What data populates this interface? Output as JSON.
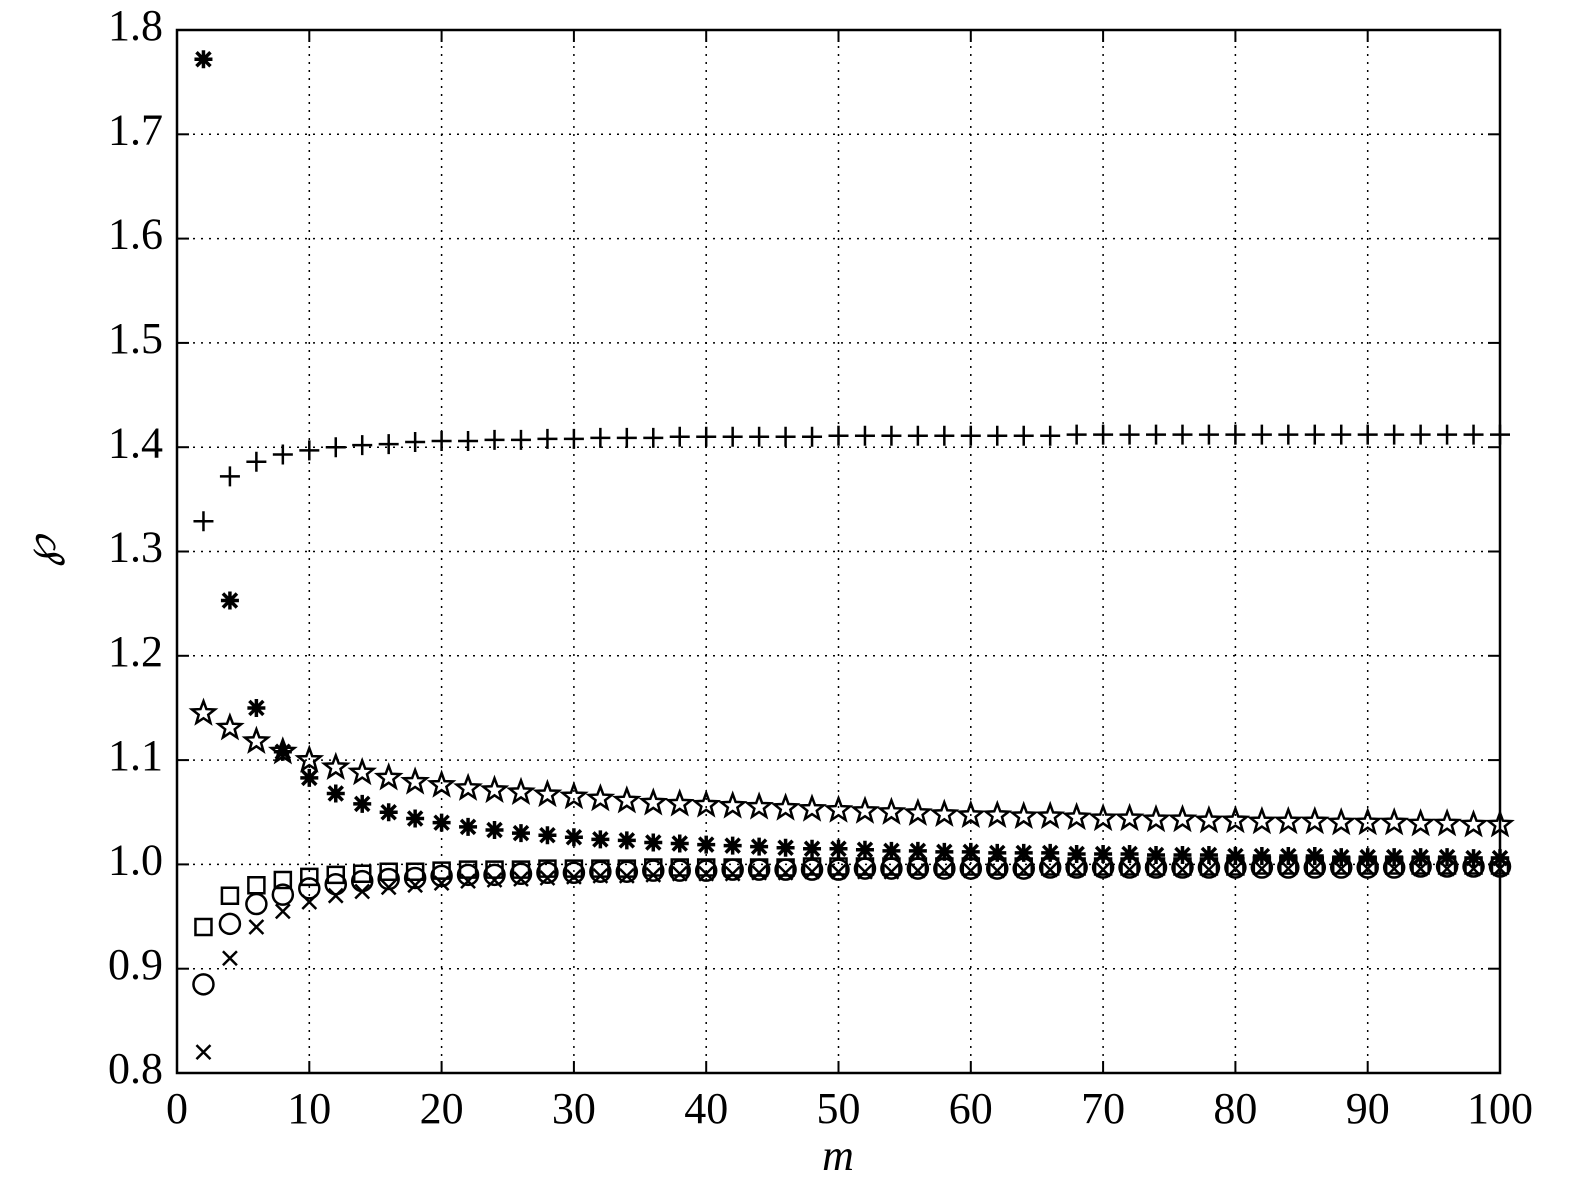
{
  "chart_data": {
    "type": "scatter",
    "xlabel": "m",
    "ylabel": "℘",
    "x": [
      2,
      4,
      6,
      8,
      10,
      12,
      14,
      16,
      18,
      20,
      22,
      24,
      26,
      28,
      30,
      32,
      34,
      36,
      38,
      40,
      42,
      44,
      46,
      48,
      50,
      52,
      54,
      56,
      58,
      60,
      62,
      64,
      66,
      68,
      70,
      72,
      74,
      76,
      78,
      80,
      82,
      84,
      86,
      88,
      90,
      92,
      94,
      96,
      98,
      100
    ],
    "series": [
      {
        "marker": "plus",
        "color": "#000000",
        "values": [
          1.329,
          1.372,
          1.386,
          1.393,
          1.397,
          1.4,
          1.402,
          1.403,
          1.405,
          1.406,
          1.406,
          1.407,
          1.407,
          1.408,
          1.408,
          1.409,
          1.409,
          1.409,
          1.41,
          1.41,
          1.41,
          1.41,
          1.41,
          1.41,
          1.411,
          1.411,
          1.411,
          1.411,
          1.411,
          1.411,
          1.411,
          1.411,
          1.411,
          1.412,
          1.412,
          1.412,
          1.412,
          1.412,
          1.412,
          1.412,
          1.412,
          1.412,
          1.412,
          1.412,
          1.412,
          1.412,
          1.412,
          1.412,
          1.412,
          1.412
        ]
      },
      {
        "marker": "asterisk",
        "color": "#000000",
        "values": [
          1.772,
          1.253,
          1.15,
          1.108,
          1.083,
          1.068,
          1.058,
          1.05,
          1.044,
          1.04,
          1.036,
          1.033,
          1.03,
          1.028,
          1.026,
          1.024,
          1.023,
          1.021,
          1.02,
          1.019,
          1.018,
          1.017,
          1.016,
          1.015,
          1.015,
          1.014,
          1.013,
          1.013,
          1.012,
          1.012,
          1.011,
          1.011,
          1.011,
          1.01,
          1.01,
          1.01,
          1.009,
          1.009,
          1.009,
          1.008,
          1.008,
          1.008,
          1.008,
          1.007,
          1.007,
          1.007,
          1.007,
          1.007,
          1.006,
          1.006
        ]
      },
      {
        "marker": "star",
        "color": "#000000",
        "values": [
          1.145,
          1.131,
          1.118,
          1.108,
          1.1,
          1.093,
          1.088,
          1.083,
          1.079,
          1.076,
          1.073,
          1.071,
          1.069,
          1.067,
          1.065,
          1.063,
          1.061,
          1.059,
          1.058,
          1.057,
          1.056,
          1.055,
          1.054,
          1.053,
          1.052,
          1.051,
          1.05,
          1.049,
          1.048,
          1.047,
          1.047,
          1.046,
          1.046,
          1.045,
          1.044,
          1.044,
          1.043,
          1.043,
          1.042,
          1.042,
          1.041,
          1.041,
          1.041,
          1.04,
          1.04,
          1.04,
          1.039,
          1.039,
          1.038,
          1.038
        ]
      },
      {
        "marker": "square",
        "color": "#000000",
        "values": [
          0.94,
          0.97,
          0.98,
          0.985,
          0.988,
          0.99,
          0.991,
          0.993,
          0.993,
          0.994,
          0.995,
          0.995,
          0.995,
          0.996,
          0.996,
          0.996,
          0.996,
          0.997,
          0.997,
          0.997,
          0.997,
          0.997,
          0.997,
          0.998,
          0.998,
          0.998,
          0.998,
          0.998,
          0.998,
          0.998,
          0.998,
          0.998,
          0.998,
          0.998,
          0.998,
          0.998,
          0.998,
          0.998,
          0.998,
          0.998,
          0.999,
          0.999,
          0.999,
          0.999,
          0.999,
          0.999,
          0.999,
          0.999,
          0.999,
          0.999
        ]
      },
      {
        "marker": "circle",
        "color": "#000000",
        "values": [
          0.885,
          0.943,
          0.962,
          0.971,
          0.977,
          0.981,
          0.984,
          0.986,
          0.987,
          0.989,
          0.99,
          0.99,
          0.991,
          0.992,
          0.992,
          0.993,
          0.993,
          0.994,
          0.994,
          0.994,
          0.995,
          0.995,
          0.995,
          0.995,
          0.995,
          0.996,
          0.996,
          0.996,
          0.996,
          0.996,
          0.996,
          0.996,
          0.997,
          0.997,
          0.997,
          0.997,
          0.997,
          0.997,
          0.997,
          0.997,
          0.997,
          0.997,
          0.997,
          0.997,
          0.997,
          0.997,
          0.998,
          0.998,
          0.998,
          0.998
        ]
      },
      {
        "marker": "x",
        "color": "#000000",
        "values": [
          0.82,
          0.91,
          0.94,
          0.955,
          0.964,
          0.97,
          0.974,
          0.978,
          0.98,
          0.982,
          0.984,
          0.985,
          0.986,
          0.987,
          0.988,
          0.989,
          0.989,
          0.99,
          0.991,
          0.991,
          0.991,
          0.992,
          0.992,
          0.993,
          0.993,
          0.993,
          0.993,
          0.994,
          0.994,
          0.994,
          0.994,
          0.994,
          0.995,
          0.995,
          0.995,
          0.995,
          0.995,
          0.995,
          0.995,
          0.996,
          0.996,
          0.996,
          0.996,
          0.996,
          0.996,
          0.996,
          0.996,
          0.996,
          0.996,
          0.996
        ]
      }
    ],
    "xlim": [
      0,
      100
    ],
    "xticks": [
      0,
      10,
      20,
      30,
      40,
      50,
      60,
      70,
      80,
      90,
      100
    ],
    "ylim": [
      0.8,
      1.8
    ],
    "yticks": [
      {
        "value": 0.8,
        "label": "0.8"
      },
      {
        "value": 0.9,
        "label": "0.9"
      },
      {
        "value": 1,
        "label": "1.0"
      },
      1.1,
      1.2,
      1.3,
      1.4,
      1.5,
      1.6,
      1.7,
      1.8
    ],
    "grid": true
  }
}
